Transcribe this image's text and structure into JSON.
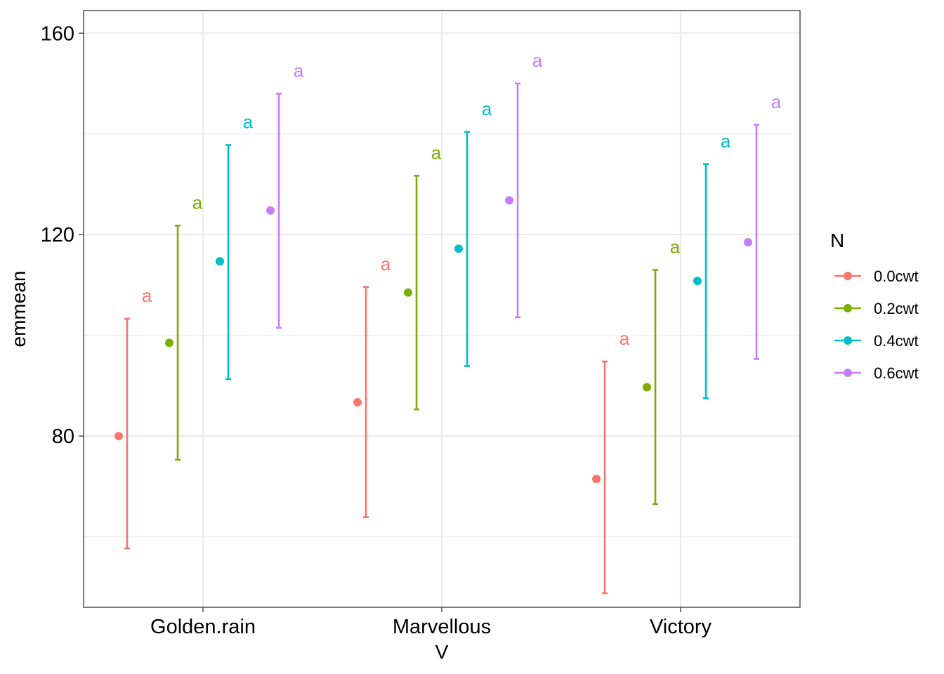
{
  "chart_data": {
    "type": "errorbar",
    "xlabel": "V",
    "ylabel": "emmean",
    "categories": [
      "Golden.rain",
      "Marvellous",
      "Victory"
    ],
    "y_ticks": [
      80,
      120,
      160
    ],
    "ylim": [
      46,
      164.5
    ],
    "grid": true,
    "legend": {
      "title": "N",
      "position": "right"
    },
    "series": [
      {
        "name": "0.0cwt",
        "color": "#F8766D",
        "values": [
          80.0,
          86.7,
          71.5
        ],
        "lower": [
          57.7,
          63.9,
          48.8
        ],
        "upper": [
          103.3,
          109.6,
          94.8
        ],
        "letters": [
          "a",
          "a",
          "a"
        ]
      },
      {
        "name": "0.2cwt",
        "color": "#7CAE00",
        "values": [
          98.5,
          108.5,
          89.7
        ],
        "lower": [
          75.3,
          85.3,
          66.5
        ],
        "upper": [
          121.8,
          131.7,
          113.0
        ],
        "letters": [
          "a",
          "a",
          "a"
        ]
      },
      {
        "name": "0.4cwt",
        "color": "#00BFC4",
        "values": [
          114.7,
          117.2,
          110.8
        ],
        "lower": [
          91.3,
          93.9,
          87.5
        ],
        "upper": [
          137.8,
          140.4,
          134.0
        ],
        "letters": [
          "a",
          "a",
          "a"
        ]
      },
      {
        "name": "0.6cwt",
        "color": "#C77CFF",
        "values": [
          124.8,
          126.8,
          118.5
        ],
        "lower": [
          101.5,
          103.6,
          95.3
        ],
        "upper": [
          148.0,
          150.0,
          141.8
        ],
        "letters": [
          "a",
          "a",
          "a"
        ]
      }
    ]
  }
}
